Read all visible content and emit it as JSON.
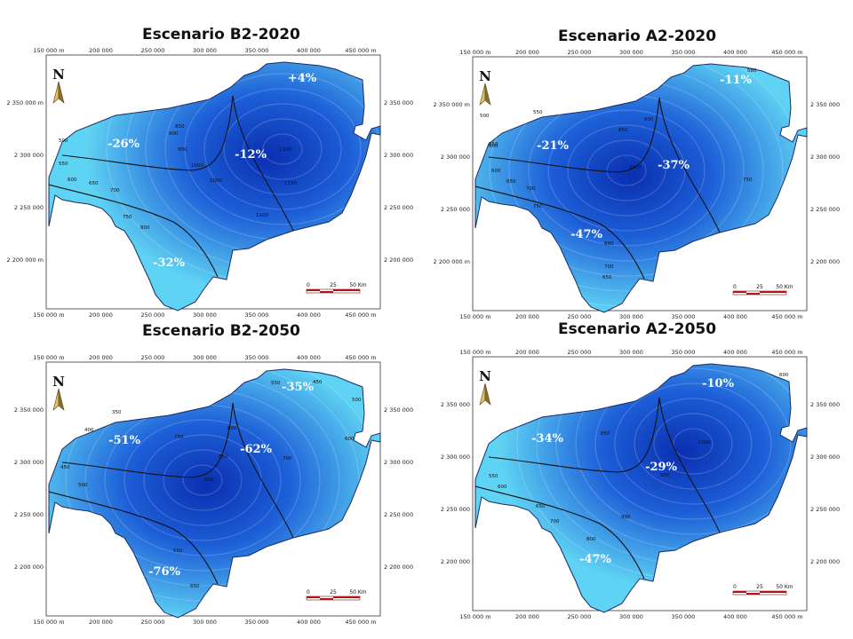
{
  "panels": [
    {
      "title": "Escenario B2-2020",
      "percents": [
        "+4%",
        "-26%",
        "-12%",
        "-32%"
      ],
      "contours": [
        "850",
        "900",
        "950",
        "1000",
        "1050",
        "1100",
        "1150",
        "1100",
        "500",
        "550",
        "600",
        "650",
        "700",
        "750",
        "800"
      ],
      "xticks": [
        "150 000 m",
        "200 000",
        "250 000",
        "300 000",
        "350 000",
        "400 000",
        "450 000 m"
      ],
      "yticks": [
        "2 350 000 m",
        "2 300 000",
        "2 250 000",
        "2 200 000 m"
      ],
      "ryticks": [
        "2 350 000",
        "2 300 000",
        "2 250 000",
        "2 200 000"
      ],
      "scale": [
        "0",
        "25",
        "50 Km"
      ],
      "colors": [
        "#5fd3f3",
        "#1d5fd8",
        "#0a2fb0"
      ]
    },
    {
      "title": "Escenario A2-2020",
      "percents": [
        "-11%",
        "-21%",
        "-37%",
        "-47%"
      ],
      "contours": [
        "500",
        "550",
        "600",
        "850",
        "900",
        "1000",
        "750",
        "550",
        "600",
        "650",
        "700",
        "750",
        "800",
        "650",
        "700",
        "580"
      ],
      "xticks": [
        "150 000 m",
        "200 000",
        "250 000",
        "300 000",
        "350 000",
        "400 000",
        "450 000 m"
      ],
      "yticks": [
        "2 350 000 m",
        "2 300 000",
        "2 250 000",
        "2 200 000 m"
      ],
      "ryticks": [
        "2 350 000",
        "2 300 000",
        "2 250 000",
        "2 200 000"
      ],
      "scale": [
        "0",
        "25",
        "50 Km"
      ],
      "colors": [
        "#5fd3f3",
        "#1d5fd8",
        "#0a2fb0"
      ]
    },
    {
      "title": "Escenario B2-2050",
      "percents": [
        "-35%",
        "-51%",
        "-62%",
        "-76%"
      ],
      "contours": [
        "550",
        "450",
        "500",
        "350",
        "400",
        "450",
        "500",
        "750",
        "800",
        "850",
        "700",
        "600",
        "650",
        "550",
        "650"
      ],
      "xticks": [
        "150 000 m",
        "200 000",
        "250 000",
        "300 000",
        "350 000",
        "400 000",
        "450 000 m"
      ],
      "yticks": [
        "2 350 000",
        "2 300 000",
        "2 250 000",
        "2 200 000"
      ],
      "ryticks": [
        "2 350 000",
        "2 300 000",
        "2 250 000",
        "2 200 000"
      ],
      "scale": [
        "0",
        "25",
        "50 Km"
      ],
      "colors": [
        "#5fd3f3",
        "#1d5fd8",
        "#0a2fb0"
      ]
    },
    {
      "title": "Escenario A2-2050",
      "percents": [
        "-10%",
        "-34%",
        "-29%",
        "-47%"
      ],
      "contours": [
        "600",
        "850",
        "1000",
        "950",
        "900",
        "550",
        "600",
        "650",
        "700",
        "800"
      ],
      "xticks": [
        "150 000 m",
        "200 000",
        "250 000",
        "300 000",
        "350 000",
        "400 000",
        "450 000 m"
      ],
      "yticks": [
        "2 350 000",
        "2 300 000",
        "2 250 000",
        "2 200 000"
      ],
      "ryticks": [
        "2 350 000",
        "2 300 000",
        "2 250 000",
        "2 200 000"
      ],
      "scale": [
        "0",
        "25",
        "50 Km"
      ],
      "colors": [
        "#5fd3f3",
        "#1d5fd8",
        "#0a2fb0"
      ]
    }
  ]
}
